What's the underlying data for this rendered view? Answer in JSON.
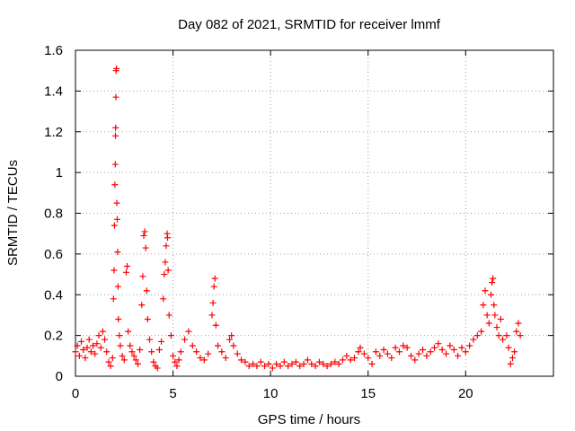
{
  "chart_data": {
    "type": "scatter",
    "title": "Day 082 of 2021, SRMTID for receiver lmmf",
    "xlabel": "GPS time / hours",
    "ylabel": "SRMTID / TECUs",
    "xlim": [
      0,
      24.5
    ],
    "ylim": [
      0,
      1.6
    ],
    "xticks": [
      0,
      5,
      10,
      15,
      20
    ],
    "xtick_labels": [
      "0",
      "5",
      "10",
      "15",
      "20"
    ],
    "yticks": [
      0,
      0.2,
      0.4,
      0.6,
      0.8,
      1,
      1.2,
      1.4,
      1.6
    ],
    "ytick_labels": [
      "0",
      "0.2",
      "0.4",
      "0.6",
      "0.8",
      "1",
      "1.2",
      "1.4",
      "1.6"
    ],
    "grid": true,
    "marker": "+",
    "color": "#ff0000",
    "series": [
      {
        "name": "SRMTID",
        "points": [
          [
            0.0,
            0.12
          ],
          [
            0.1,
            0.15
          ],
          [
            0.2,
            0.1
          ],
          [
            0.3,
            0.17
          ],
          [
            0.4,
            0.13
          ],
          [
            0.5,
            0.09
          ],
          [
            0.6,
            0.14
          ],
          [
            0.7,
            0.18
          ],
          [
            0.8,
            0.12
          ],
          [
            0.9,
            0.15
          ],
          [
            1.0,
            0.11
          ],
          [
            1.1,
            0.16
          ],
          [
            1.2,
            0.2
          ],
          [
            1.3,
            0.14
          ],
          [
            1.4,
            0.22
          ],
          [
            1.5,
            0.18
          ],
          [
            1.6,
            0.12
          ],
          [
            1.7,
            0.07
          ],
          [
            1.8,
            0.05
          ],
          [
            1.9,
            0.09
          ],
          [
            1.95,
            0.38
          ],
          [
            1.98,
            0.52
          ],
          [
            2.0,
            0.74
          ],
          [
            2.02,
            0.94
          ],
          [
            2.04,
            1.04
          ],
          [
            2.05,
            1.18
          ],
          [
            2.06,
            1.22
          ],
          [
            2.07,
            1.37
          ],
          [
            2.08,
            1.5
          ],
          [
            2.1,
            1.51
          ],
          [
            2.12,
            0.85
          ],
          [
            2.14,
            0.77
          ],
          [
            2.16,
            0.61
          ],
          [
            2.18,
            0.44
          ],
          [
            2.2,
            0.28
          ],
          [
            2.25,
            0.2
          ],
          [
            2.3,
            0.15
          ],
          [
            2.4,
            0.1
          ],
          [
            2.5,
            0.08
          ],
          [
            2.6,
            0.51
          ],
          [
            2.65,
            0.54
          ],
          [
            2.7,
            0.22
          ],
          [
            2.8,
            0.15
          ],
          [
            2.9,
            0.12
          ],
          [
            3.0,
            0.1
          ],
          [
            3.1,
            0.08
          ],
          [
            3.2,
            0.06
          ],
          [
            3.3,
            0.13
          ],
          [
            3.4,
            0.35
          ],
          [
            3.45,
            0.49
          ],
          [
            3.5,
            0.69
          ],
          [
            3.55,
            0.71
          ],
          [
            3.6,
            0.63
          ],
          [
            3.65,
            0.42
          ],
          [
            3.7,
            0.28
          ],
          [
            3.8,
            0.18
          ],
          [
            3.9,
            0.12
          ],
          [
            4.0,
            0.07
          ],
          [
            4.1,
            0.05
          ],
          [
            4.2,
            0.04
          ],
          [
            4.3,
            0.13
          ],
          [
            4.4,
            0.17
          ],
          [
            4.5,
            0.38
          ],
          [
            4.55,
            0.5
          ],
          [
            4.6,
            0.56
          ],
          [
            4.65,
            0.64
          ],
          [
            4.7,
            0.7
          ],
          [
            4.72,
            0.68
          ],
          [
            4.75,
            0.52
          ],
          [
            4.8,
            0.3
          ],
          [
            4.9,
            0.2
          ],
          [
            5.0,
            0.1
          ],
          [
            5.1,
            0.07
          ],
          [
            5.2,
            0.05
          ],
          [
            5.3,
            0.08
          ],
          [
            5.4,
            0.12
          ],
          [
            5.6,
            0.18
          ],
          [
            5.8,
            0.22
          ],
          [
            6.0,
            0.15
          ],
          [
            6.2,
            0.12
          ],
          [
            6.4,
            0.09
          ],
          [
            6.6,
            0.08
          ],
          [
            6.8,
            0.11
          ],
          [
            7.0,
            0.3
          ],
          [
            7.05,
            0.36
          ],
          [
            7.1,
            0.44
          ],
          [
            7.15,
            0.48
          ],
          [
            7.2,
            0.25
          ],
          [
            7.3,
            0.15
          ],
          [
            7.5,
            0.12
          ],
          [
            7.7,
            0.09
          ],
          [
            7.9,
            0.18
          ],
          [
            8.0,
            0.2
          ],
          [
            8.1,
            0.15
          ],
          [
            8.3,
            0.11
          ],
          [
            8.5,
            0.08
          ],
          [
            8.7,
            0.07
          ],
          [
            8.9,
            0.05
          ],
          [
            9.1,
            0.06
          ],
          [
            9.3,
            0.05
          ],
          [
            9.5,
            0.07
          ],
          [
            9.7,
            0.05
          ],
          [
            9.9,
            0.06
          ],
          [
            10.1,
            0.04
          ],
          [
            10.3,
            0.06
          ],
          [
            10.5,
            0.05
          ],
          [
            10.7,
            0.07
          ],
          [
            10.9,
            0.05
          ],
          [
            11.1,
            0.06
          ],
          [
            11.3,
            0.07
          ],
          [
            11.5,
            0.05
          ],
          [
            11.7,
            0.06
          ],
          [
            11.9,
            0.08
          ],
          [
            12.1,
            0.06
          ],
          [
            12.3,
            0.05
          ],
          [
            12.5,
            0.07
          ],
          [
            12.7,
            0.06
          ],
          [
            12.9,
            0.05
          ],
          [
            13.1,
            0.06
          ],
          [
            13.3,
            0.07
          ],
          [
            13.5,
            0.06
          ],
          [
            13.7,
            0.08
          ],
          [
            13.9,
            0.1
          ],
          [
            14.1,
            0.08
          ],
          [
            14.3,
            0.09
          ],
          [
            14.5,
            0.12
          ],
          [
            14.6,
            0.14
          ],
          [
            14.8,
            0.11
          ],
          [
            15.0,
            0.09
          ],
          [
            15.2,
            0.06
          ],
          [
            15.4,
            0.12
          ],
          [
            15.6,
            0.1
          ],
          [
            15.8,
            0.13
          ],
          [
            16.0,
            0.11
          ],
          [
            16.2,
            0.09
          ],
          [
            16.4,
            0.14
          ],
          [
            16.6,
            0.12
          ],
          [
            16.8,
            0.15
          ],
          [
            17.0,
            0.14
          ],
          [
            17.2,
            0.1
          ],
          [
            17.4,
            0.08
          ],
          [
            17.6,
            0.11
          ],
          [
            17.8,
            0.13
          ],
          [
            18.0,
            0.1
          ],
          [
            18.2,
            0.12
          ],
          [
            18.4,
            0.14
          ],
          [
            18.6,
            0.16
          ],
          [
            18.8,
            0.13
          ],
          [
            19.0,
            0.11
          ],
          [
            19.2,
            0.15
          ],
          [
            19.4,
            0.13
          ],
          [
            19.6,
            0.1
          ],
          [
            19.8,
            0.14
          ],
          [
            20.0,
            0.12
          ],
          [
            20.2,
            0.15
          ],
          [
            20.4,
            0.18
          ],
          [
            20.6,
            0.2
          ],
          [
            20.8,
            0.22
          ],
          [
            20.9,
            0.35
          ],
          [
            21.0,
            0.42
          ],
          [
            21.1,
            0.3
          ],
          [
            21.2,
            0.26
          ],
          [
            21.3,
            0.4
          ],
          [
            21.35,
            0.46
          ],
          [
            21.4,
            0.48
          ],
          [
            21.45,
            0.35
          ],
          [
            21.5,
            0.3
          ],
          [
            21.6,
            0.24
          ],
          [
            21.7,
            0.2
          ],
          [
            21.8,
            0.28
          ],
          [
            21.9,
            0.18
          ],
          [
            22.1,
            0.2
          ],
          [
            22.2,
            0.14
          ],
          [
            22.3,
            0.06
          ],
          [
            22.4,
            0.09
          ],
          [
            22.5,
            0.12
          ],
          [
            22.6,
            0.22
          ],
          [
            22.7,
            0.26
          ],
          [
            22.8,
            0.2
          ]
        ]
      }
    ]
  }
}
